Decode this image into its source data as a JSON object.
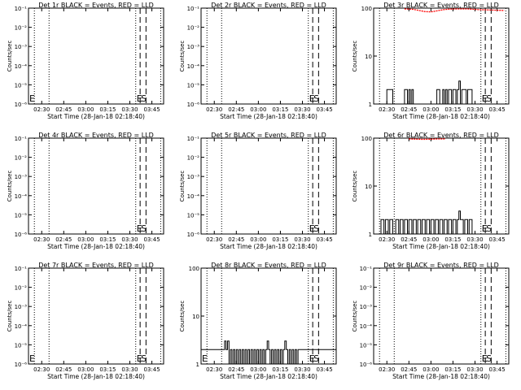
{
  "chart_data": [
    {
      "type": "line",
      "title": "Det 1r BLACK = Events, RED = LLD",
      "xlabel": "Start Time (28-Jan-18 02:18:40)",
      "ylabel": "Counts/sec",
      "yscale": "log",
      "xlim": [
        "02:21",
        "03:53"
      ],
      "ylim": [
        1e-06,
        0.1
      ],
      "xticks": [
        "02:30",
        "02:45",
        "03:00",
        "03:15",
        "03:30",
        "03:45"
      ],
      "yticks": [
        {
          "value": 1e-06,
          "label": "10⁻⁶"
        },
        {
          "value": 1e-05,
          "label": "10⁻⁵"
        },
        {
          "value": 0.0001,
          "label": "10⁻⁴"
        },
        {
          "value": 0.001,
          "label": "10⁻³"
        },
        {
          "value": 0.01,
          "label": "10⁻²"
        },
        {
          "value": 0.1,
          "label": "10⁻¹"
        }
      ],
      "dotted_lines": [
        "02:25",
        "02:35",
        "03:34",
        "03:51"
      ],
      "dashed_lines": [
        "03:37",
        "03:41"
      ],
      "markers": [
        {
          "time": "02:21",
          "label": "E"
        },
        {
          "time": "03:34",
          "label": "E"
        },
        {
          "time": "03:37",
          "label": "S"
        }
      ],
      "events": [],
      "lld": []
    },
    {
      "type": "line",
      "title": "Det 2r BLACK = Events, RED = LLD",
      "xlabel": "Start Time (28-Jan-18 02:18:40)",
      "ylabel": "Counts/sec",
      "yscale": "log",
      "xlim": [
        "02:21",
        "03:53"
      ],
      "ylim": [
        1e-06,
        0.1
      ],
      "xticks": [
        "02:30",
        "02:45",
        "03:00",
        "03:15",
        "03:30",
        "03:45"
      ],
      "yticks": [
        {
          "value": 1e-06,
          "label": "10⁻⁶"
        },
        {
          "value": 1e-05,
          "label": "10⁻⁵"
        },
        {
          "value": 0.0001,
          "label": "10⁻⁴"
        },
        {
          "value": 0.001,
          "label": "10⁻³"
        },
        {
          "value": 0.01,
          "label": "10⁻²"
        },
        {
          "value": 0.1,
          "label": "10⁻¹"
        }
      ],
      "dotted_lines": [
        "02:25",
        "02:35",
        "03:34",
        "03:51"
      ],
      "dashed_lines": [
        "03:37",
        "03:41"
      ],
      "markers": [
        {
          "time": "03:34",
          "label": "E"
        },
        {
          "time": "03:37",
          "label": "S"
        }
      ],
      "events": [],
      "lld": []
    },
    {
      "type": "line",
      "title": "Det 3r BLACK = Events, RED = LLD",
      "xlabel": "Start Time (28-Jan-18 02:18:40)",
      "ylabel": "Counts/sec",
      "yscale": "log",
      "xlim": [
        "02:21",
        "03:53"
      ],
      "ylim": [
        1,
        100
      ],
      "xticks": [
        "02:30",
        "02:45",
        "03:00",
        "03:15",
        "03:30",
        "03:45"
      ],
      "yticks": [
        {
          "value": 1,
          "label": "1"
        },
        {
          "value": 10,
          "label": "10"
        },
        {
          "value": 100,
          "label": "100"
        }
      ],
      "dotted_lines": [
        "02:25",
        "02:35",
        "03:34",
        "03:51"
      ],
      "dashed_lines": [
        "03:37",
        "03:41"
      ],
      "markers": [
        {
          "time": "03:34",
          "label": "E"
        },
        {
          "time": "03:37",
          "label": "S"
        }
      ],
      "events": [
        [
          "02:21",
          1
        ],
        [
          "02:29",
          1
        ],
        [
          "02:30",
          2
        ],
        [
          "02:34",
          2
        ],
        [
          "02:34",
          1
        ],
        [
          "02:41",
          1
        ],
        [
          "02:42",
          2
        ],
        [
          "02:44",
          1
        ],
        [
          "02:45",
          2
        ],
        [
          "02:46",
          1
        ],
        [
          "02:47",
          2
        ],
        [
          "02:48",
          1
        ],
        [
          "03:04",
          1
        ],
        [
          "03:04",
          2
        ],
        [
          "03:06",
          1
        ],
        [
          "03:08",
          2
        ],
        [
          "03:09",
          1
        ],
        [
          "03:10",
          2
        ],
        [
          "03:11",
          1
        ],
        [
          "03:12",
          2
        ],
        [
          "03:14",
          1
        ],
        [
          "03:15",
          2
        ],
        [
          "03:17",
          1
        ],
        [
          "03:18",
          2
        ],
        [
          "03:19",
          3
        ],
        [
          "03:20",
          1
        ],
        [
          "03:21",
          2
        ],
        [
          "03:24",
          1
        ],
        [
          "03:25",
          2
        ],
        [
          "03:28",
          1
        ],
        [
          "03:53",
          1
        ]
      ],
      "lld": [
        [
          "02:42",
          100
        ],
        [
          "02:48",
          98
        ],
        [
          "02:52",
          93
        ],
        [
          "02:56",
          88
        ],
        [
          "03:00",
          87
        ],
        [
          "03:04",
          91
        ],
        [
          "03:08",
          96
        ],
        [
          "03:12",
          99
        ],
        [
          "03:18",
          100
        ],
        [
          "03:25",
          100
        ],
        [
          "03:32",
          97
        ],
        [
          "03:40",
          95
        ],
        [
          "03:50",
          93
        ]
      ]
    },
    {
      "type": "line",
      "title": "Det 4r BLACK = Events, RED = LLD",
      "xlabel": "Start Time (28-Jan-18 02:18:40)",
      "ylabel": "Counts/sec",
      "yscale": "log",
      "xlim": [
        "02:21",
        "03:53"
      ],
      "ylim": [
        1e-06,
        0.1
      ],
      "xticks": [
        "02:30",
        "02:45",
        "03:00",
        "03:15",
        "03:30",
        "03:45"
      ],
      "yticks": [
        {
          "value": 1e-06,
          "label": "10⁻⁶"
        },
        {
          "value": 1e-05,
          "label": "10⁻⁵"
        },
        {
          "value": 0.0001,
          "label": "10⁻⁴"
        },
        {
          "value": 0.001,
          "label": "10⁻³"
        },
        {
          "value": 0.01,
          "label": "10⁻²"
        },
        {
          "value": 0.1,
          "label": "10⁻¹"
        }
      ],
      "dotted_lines": [
        "02:25",
        "02:35",
        "03:34",
        "03:51"
      ],
      "dashed_lines": [
        "03:37",
        "03:41"
      ],
      "markers": [
        {
          "time": "03:34",
          "label": "E"
        },
        {
          "time": "03:37",
          "label": "S"
        }
      ],
      "events": [],
      "lld": []
    },
    {
      "type": "line",
      "title": "Det 5r BLACK = Events, RED = LLD",
      "xlabel": "Start Time (28-Jan-18 02:18:40)",
      "ylabel": "Counts/sec",
      "yscale": "log",
      "xlim": [
        "02:21",
        "03:53"
      ],
      "ylim": [
        1e-06,
        0.1
      ],
      "xticks": [
        "02:30",
        "02:45",
        "03:00",
        "03:15",
        "03:30",
        "03:45"
      ],
      "yticks": [
        {
          "value": 1e-06,
          "label": "10⁻⁶"
        },
        {
          "value": 1e-05,
          "label": "10⁻⁵"
        },
        {
          "value": 0.0001,
          "label": "10⁻⁴"
        },
        {
          "value": 0.001,
          "label": "10⁻³"
        },
        {
          "value": 0.01,
          "label": "10⁻²"
        },
        {
          "value": 0.1,
          "label": "10⁻¹"
        }
      ],
      "dotted_lines": [
        "02:25",
        "02:35",
        "03:34",
        "03:51"
      ],
      "dashed_lines": [
        "03:37",
        "03:41"
      ],
      "markers": [
        {
          "time": "03:34",
          "label": "E"
        },
        {
          "time": "03:37",
          "label": "S"
        }
      ],
      "events": [],
      "lld": []
    },
    {
      "type": "line",
      "title": "Det 6r BLACK = Events, RED = LLD",
      "xlabel": "Start Time (28-Jan-18 02:18:40)",
      "ylabel": "Counts/sec",
      "yscale": "log",
      "xlim": [
        "02:21",
        "03:53"
      ],
      "ylim": [
        1,
        100
      ],
      "xticks": [
        "02:30",
        "02:45",
        "03:00",
        "03:15",
        "03:30",
        "03:45"
      ],
      "yticks": [
        {
          "value": 1,
          "label": "1"
        },
        {
          "value": 10,
          "label": "10"
        },
        {
          "value": 100,
          "label": "100"
        }
      ],
      "dotted_lines": [
        "02:25",
        "02:35",
        "03:34",
        "03:51"
      ],
      "dashed_lines": [
        "03:37",
        "03:41"
      ],
      "markers": [
        {
          "time": "03:34",
          "label": "E"
        },
        {
          "time": "03:37",
          "label": "S"
        }
      ],
      "events": [
        [
          "02:21",
          1
        ],
        [
          "02:25",
          1
        ],
        [
          "02:26",
          2
        ],
        [
          "02:28",
          1
        ],
        [
          "02:29",
          2
        ],
        [
          "02:31",
          1
        ],
        [
          "02:32",
          2
        ],
        [
          "02:34",
          1
        ],
        [
          "02:36",
          2
        ],
        [
          "02:38",
          1
        ],
        [
          "02:39",
          2
        ],
        [
          "02:41",
          1
        ],
        [
          "02:42",
          2
        ],
        [
          "02:44",
          1
        ],
        [
          "02:45",
          2
        ],
        [
          "02:47",
          1
        ],
        [
          "02:48",
          2
        ],
        [
          "02:50",
          1
        ],
        [
          "02:51",
          2
        ],
        [
          "02:53",
          1
        ],
        [
          "02:54",
          2
        ],
        [
          "02:56",
          1
        ],
        [
          "02:57",
          2
        ],
        [
          "02:59",
          1
        ],
        [
          "03:00",
          2
        ],
        [
          "03:02",
          1
        ],
        [
          "03:03",
          2
        ],
        [
          "03:05",
          1
        ],
        [
          "03:06",
          2
        ],
        [
          "03:08",
          1
        ],
        [
          "03:09",
          2
        ],
        [
          "03:11",
          1
        ],
        [
          "03:12",
          2
        ],
        [
          "03:14",
          1
        ],
        [
          "03:15",
          2
        ],
        [
          "03:17",
          1
        ],
        [
          "03:18",
          2
        ],
        [
          "03:19",
          3
        ],
        [
          "03:20",
          2
        ],
        [
          "03:22",
          1
        ],
        [
          "03:23",
          2
        ],
        [
          "03:25",
          1
        ],
        [
          "03:26",
          2
        ],
        [
          "03:28",
          1
        ],
        [
          "03:53",
          1
        ]
      ],
      "lld": [
        [
          "02:45",
          100
        ],
        [
          "02:50",
          99
        ],
        [
          "02:55",
          98
        ],
        [
          "03:00",
          99
        ],
        [
          "03:05",
          100
        ],
        [
          "03:10",
          100
        ]
      ]
    },
    {
      "type": "line",
      "title": "Det 7r BLACK = Events, RED = LLD",
      "xlabel": "Start Time (28-Jan-18 02:18:40)",
      "ylabel": "Counts/sec",
      "yscale": "log",
      "xlim": [
        "02:21",
        "03:53"
      ],
      "ylim": [
        1e-06,
        0.1
      ],
      "xticks": [
        "02:30",
        "02:45",
        "03:00",
        "03:15",
        "03:30",
        "03:45"
      ],
      "yticks": [
        {
          "value": 1e-06,
          "label": "10⁻⁶"
        },
        {
          "value": 1e-05,
          "label": "10⁻⁵"
        },
        {
          "value": 0.0001,
          "label": "10⁻⁴"
        },
        {
          "value": 0.001,
          "label": "10⁻³"
        },
        {
          "value": 0.01,
          "label": "10⁻²"
        },
        {
          "value": 0.1,
          "label": "10⁻¹"
        }
      ],
      "dotted_lines": [
        "02:25",
        "02:35",
        "03:34",
        "03:51"
      ],
      "dashed_lines": [
        "03:37",
        "03:41"
      ],
      "markers": [
        {
          "time": "02:21",
          "label": "E"
        },
        {
          "time": "03:34",
          "label": "E"
        },
        {
          "time": "03:37",
          "label": "S"
        }
      ],
      "events": [],
      "lld": []
    },
    {
      "type": "line",
      "title": "Det 8r BLACK = Events, RED = LLD",
      "xlabel": "Start Time (28-Jan-18 02:18:40)",
      "ylabel": "Counts/sec",
      "yscale": "log",
      "xlim": [
        "02:21",
        "03:53"
      ],
      "ylim": [
        1,
        100
      ],
      "xticks": [
        "02:30",
        "02:45",
        "03:00",
        "03:15",
        "03:30",
        "03:45"
      ],
      "yticks": [
        {
          "value": 1,
          "label": "1"
        },
        {
          "value": 10,
          "label": "10"
        },
        {
          "value": 100,
          "label": "100"
        }
      ],
      "dotted_lines": [
        "02:25",
        "02:35",
        "03:34",
        "03:51"
      ],
      "dashed_lines": [
        "03:37",
        "03:41"
      ],
      "markers": [
        {
          "time": "02:21",
          "label": "E"
        },
        {
          "time": "03:34",
          "label": "E"
        },
        {
          "time": "03:37",
          "label": "S"
        }
      ],
      "events": [
        [
          "02:21",
          2
        ],
        [
          "02:36",
          2
        ],
        [
          "02:37",
          3
        ],
        [
          "02:38",
          2
        ],
        [
          "02:39",
          3
        ],
        [
          "02:40",
          1
        ],
        [
          "02:41",
          2
        ],
        [
          "02:42",
          1
        ],
        [
          "02:43",
          2
        ],
        [
          "02:44",
          1
        ],
        [
          "02:45",
          2
        ],
        [
          "02:46",
          1
        ],
        [
          "02:47",
          2
        ],
        [
          "02:48",
          1
        ],
        [
          "02:49",
          2
        ],
        [
          "02:50",
          1
        ],
        [
          "02:51",
          2
        ],
        [
          "02:52",
          1
        ],
        [
          "02:53",
          2
        ],
        [
          "02:54",
          1
        ],
        [
          "02:55",
          2
        ],
        [
          "02:56",
          1
        ],
        [
          "02:57",
          2
        ],
        [
          "02:58",
          1
        ],
        [
          "02:59",
          2
        ],
        [
          "03:00",
          1
        ],
        [
          "03:01",
          2
        ],
        [
          "03:02",
          1
        ],
        [
          "03:03",
          2
        ],
        [
          "03:04",
          1
        ],
        [
          "03:05",
          2
        ],
        [
          "03:06",
          3
        ],
        [
          "03:07",
          2
        ],
        [
          "03:08",
          1
        ],
        [
          "03:09",
          2
        ],
        [
          "03:10",
          1
        ],
        [
          "03:11",
          2
        ],
        [
          "03:12",
          1
        ],
        [
          "03:13",
          2
        ],
        [
          "03:14",
          1
        ],
        [
          "03:15",
          2
        ],
        [
          "03:16",
          1
        ],
        [
          "03:17",
          2
        ],
        [
          "03:18",
          3
        ],
        [
          "03:19",
          2
        ],
        [
          "03:20",
          1
        ],
        [
          "03:21",
          2
        ],
        [
          "03:22",
          1
        ],
        [
          "03:23",
          2
        ],
        [
          "03:24",
          1
        ],
        [
          "03:25",
          2
        ],
        [
          "03:26",
          1
        ],
        [
          "03:27",
          2
        ],
        [
          "03:28",
          2
        ],
        [
          "03:53",
          1
        ]
      ],
      "lld": []
    },
    {
      "type": "line",
      "title": "Det 9r BLACK = Events, RED = LLD",
      "xlabel": "Start Time (28-Jan-18 02:18:40)",
      "ylabel": "Counts/sec",
      "yscale": "log",
      "xlim": [
        "02:21",
        "03:53"
      ],
      "ylim": [
        1e-06,
        0.1
      ],
      "xticks": [
        "02:30",
        "02:45",
        "03:00",
        "03:15",
        "03:30",
        "03:45"
      ],
      "yticks": [
        {
          "value": 1e-06,
          "label": "10⁻⁶"
        },
        {
          "value": 1e-05,
          "label": "10⁻⁵"
        },
        {
          "value": 0.0001,
          "label": "10⁻⁴"
        },
        {
          "value": 0.001,
          "label": "10⁻³"
        },
        {
          "value": 0.01,
          "label": "10⁻²"
        },
        {
          "value": 0.1,
          "label": "10⁻¹"
        }
      ],
      "dotted_lines": [
        "02:25",
        "02:35",
        "03:34",
        "03:51"
      ],
      "dashed_lines": [
        "03:37",
        "03:41"
      ],
      "markers": [
        {
          "time": "03:34",
          "label": "E"
        },
        {
          "time": "03:37",
          "label": "S"
        }
      ],
      "events": [],
      "lld": []
    }
  ],
  "colors": {
    "events": "#000000",
    "lld": "#ff0000"
  }
}
